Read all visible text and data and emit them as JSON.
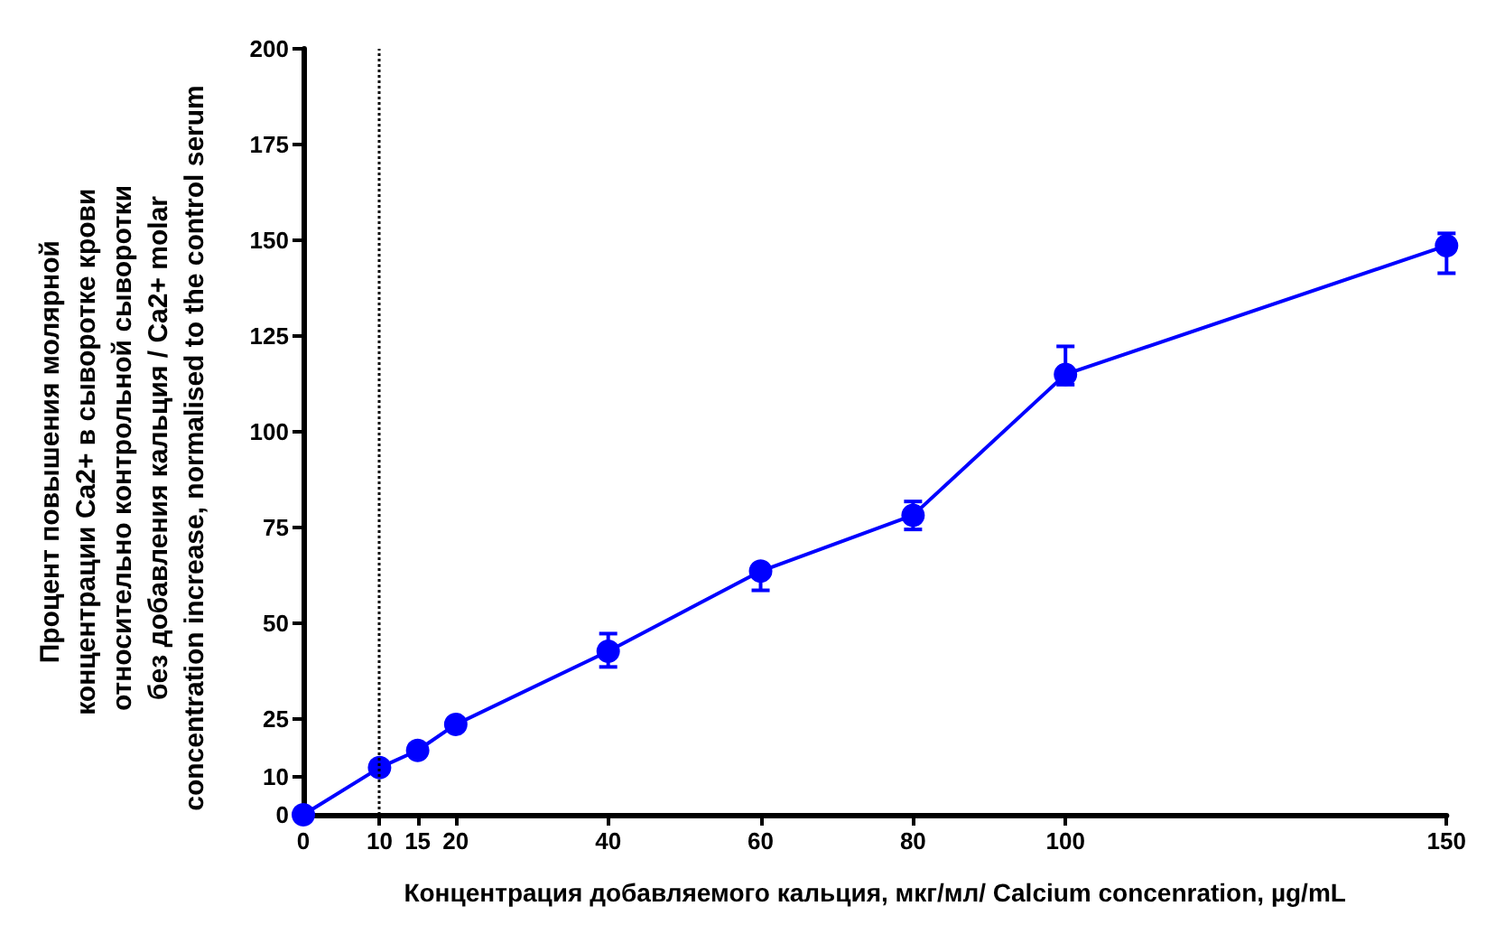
{
  "chart_data": {
    "type": "line",
    "xlabel": "Концентрация добавляемого кальция, мкг/мл/ Calcium concenration, µg/mL",
    "ylabel": "Процент повышения молярной концентрации Ca2+ в сыворотке крови относительно контрольной сыворотки без добавления кальция / Ca2+ molar concentration increase, normalised to the control serum",
    "x": [
      0,
      10,
      15,
      20,
      40,
      60,
      80,
      100,
      150
    ],
    "series": [
      {
        "color": "#0000ff",
        "values": [
          0,
          12.3,
          16.8,
          23.6,
          42.7,
          63.6,
          78.2,
          115,
          148.6
        ],
        "errors": [
          null,
          null,
          null,
          null,
          [
            38.6,
            47.3
          ],
          [
            58.6,
            63.6
          ],
          [
            74.5,
            81.8
          ],
          [
            112.3,
            122.3
          ],
          [
            141.4,
            151.8
          ]
        ]
      }
    ],
    "xlim": [
      0,
      150
    ],
    "xticks": [
      0,
      10,
      15,
      20,
      40,
      60,
      80,
      100,
      150
    ],
    "ylim": [
      0,
      200
    ],
    "yticks": [
      0,
      10,
      25,
      50,
      75,
      100,
      125,
      150,
      175,
      200
    ],
    "ref_lines": [
      {
        "axis": "x",
        "value": 10,
        "line_style": "dotted",
        "color": "#000000"
      }
    ],
    "marker": "circle",
    "line_style": "solid",
    "grid": false
  }
}
